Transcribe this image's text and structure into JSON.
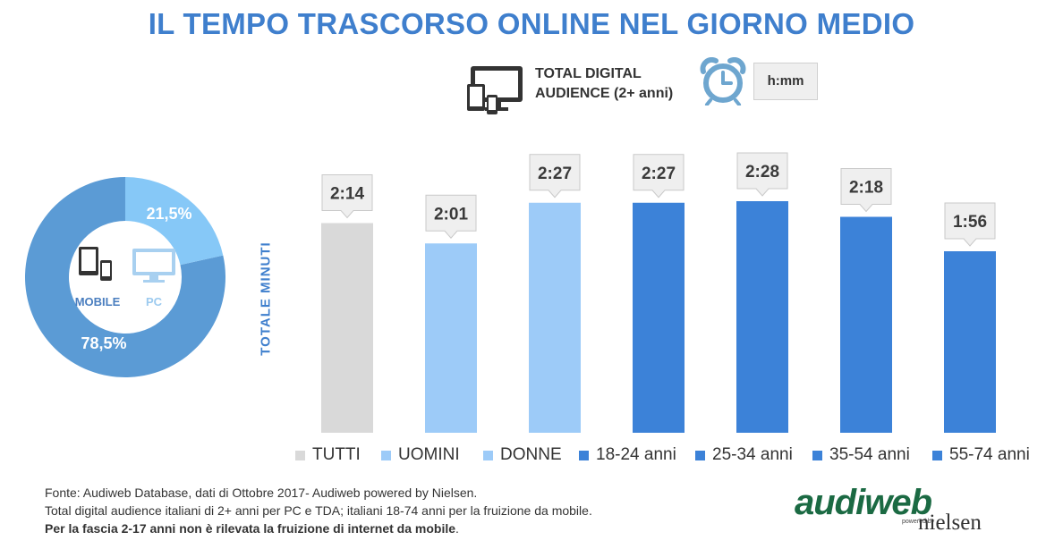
{
  "title": "IL TEMPO TRASCORSO ONLINE NEL GIORNO MEDIO",
  "audience_label_line1": "TOTAL DIGITAL",
  "audience_label_line2": "AUDIENCE (2+ anni)",
  "unit_label": "h:mm",
  "donut": {
    "center_mobile_label": "MOBILE",
    "center_pc_label": "PC",
    "mobile_pct_label": "78,5%",
    "pc_pct_label": "21,5%",
    "mobile_value": 78.5,
    "pc_value": 21.5,
    "mobile_color": "#5b9bd5",
    "pc_color": "#86c8f7"
  },
  "chart_data": {
    "type": "bar",
    "ylabel": "TOTALE MINUTI",
    "categories": [
      "TUTTI",
      "UOMINI",
      "DONNE",
      "18-24 anni",
      "25-34 anni",
      "35-54 anni",
      "55-74 anni"
    ],
    "values": [
      134,
      121,
      147,
      147,
      148,
      138,
      116
    ],
    "data_labels": [
      "2:14",
      "2:01",
      "2:27",
      "2:27",
      "2:28",
      "2:18",
      "1:56"
    ],
    "colors": [
      "#d9d9d9",
      "#9dcbf8",
      "#9dcbf8",
      "#3c82d8",
      "#3c82d8",
      "#3c82d8",
      "#3c82d8"
    ],
    "ylim": [
      0,
      160
    ],
    "grid": false,
    "legend_position": "bottom"
  },
  "footer": {
    "line1": "Fonte: Audiweb Database, dati di Ottobre 2017- Audiweb powered by Nielsen.",
    "line2": "Total digital audience italiani di 2+ anni per PC e TDA; italiani 18-74 anni per la fruizione da mobile.",
    "line3": "Per la fascia 2-17 anni non è rilevata la fruizione di internet da mobile",
    "line3_end": "."
  },
  "logo": {
    "main": "audiweb",
    "powered": "powered by",
    "nielsen": "nielsen"
  }
}
